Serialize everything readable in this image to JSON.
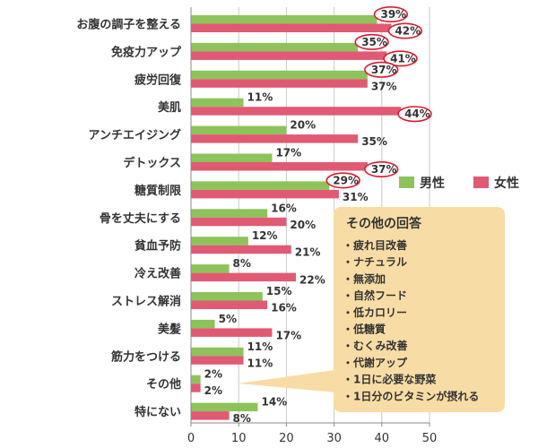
{
  "chart_data": {
    "type": "bar",
    "orientation": "horizontal",
    "categories": [
      "お腹の調子を整える",
      "免疫力アップ",
      "疲労回復",
      "美肌",
      "アンチエイジング",
      "デトックス",
      "糖質制限",
      "骨を丈夫にする",
      "貧血予防",
      "冷え改善",
      "ストレス解消",
      "美髪",
      "筋力をつける",
      "その他",
      "特にない"
    ],
    "series": [
      {
        "name": "男性",
        "color": "#8dc35a",
        "values": [
          39,
          35,
          37,
          11,
          20,
          17,
          29,
          16,
          12,
          8,
          15,
          5,
          11,
          2,
          14
        ]
      },
      {
        "name": "女性",
        "color": "#e05a74",
        "values": [
          42,
          41,
          37,
          44,
          35,
          37,
          31,
          20,
          21,
          22,
          16,
          17,
          11,
          2,
          8
        ]
      }
    ],
    "value_labels": {
      "男性": [
        "39%",
        "35%",
        "37%",
        "11%",
        "20%",
        "17%",
        "29%",
        "16%",
        "12%",
        "8%",
        "15%",
        "5%",
        "11%",
        "2%",
        "14%"
      ],
      "女性": [
        "42%",
        "41%",
        "37%",
        "44%",
        "35%",
        "37%",
        "31%",
        "20%",
        "21%",
        "22%",
        "16%",
        "17%",
        "11%",
        "2%",
        "8%"
      ]
    },
    "highlighted": {
      "男性": [
        0,
        1,
        2,
        6
      ],
      "女性": [
        0,
        1,
        3,
        5
      ]
    },
    "highlight_color": "#e0182e",
    "xlim": [
      0,
      50
    ],
    "xticks": [
      "0",
      "10",
      "20",
      "30",
      "40",
      "50"
    ],
    "legend_position": "right",
    "title": "",
    "xlabel": "",
    "ylabel": ""
  },
  "callout": {
    "title": "その他の回答",
    "items": [
      "・疲れ目改善",
      "・ナチュラル",
      "・無添加",
      "・自然フード",
      "・低カロリー",
      "・低糖質",
      "・むくみ改善",
      "・代謝アップ",
      "・1日に必要な野菜",
      "・1日分のビタミンが摂れる"
    ],
    "background": "#f8dca6"
  }
}
